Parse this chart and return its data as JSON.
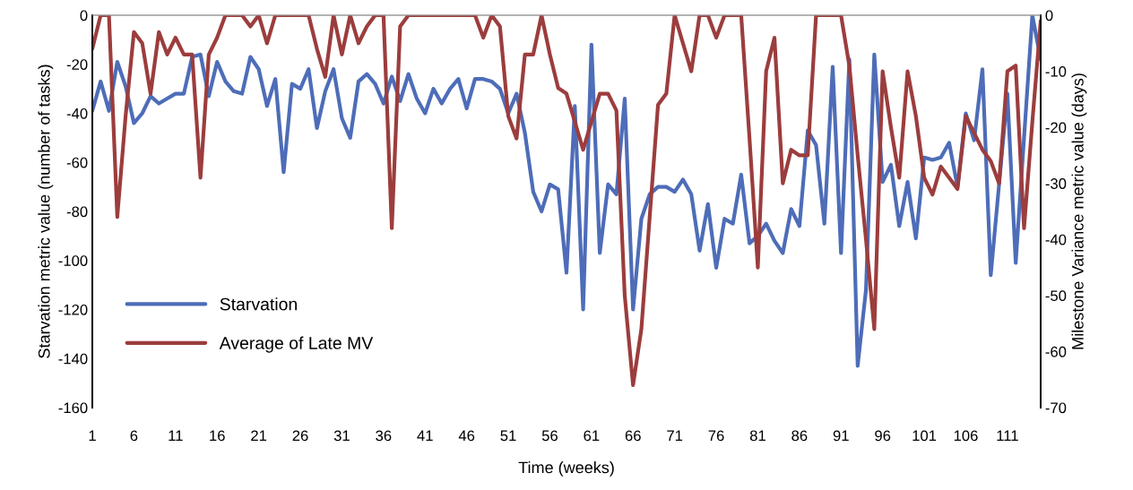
{
  "chart_data": {
    "type": "line",
    "xlabel": "Time (weeks)",
    "ylabel": "Starvation metric value (number of tasks)",
    "y2label": "Milestone Variance metric value (days)",
    "categories": [
      "1",
      null,
      null,
      null,
      null,
      "6",
      null,
      null,
      null,
      null,
      "11",
      null,
      null,
      null,
      null,
      "16",
      null,
      null,
      null,
      null,
      "21",
      null,
      null,
      null,
      null,
      "26",
      null,
      null,
      null,
      null,
      "31",
      null,
      null,
      null,
      null,
      "36",
      null,
      null,
      null,
      null,
      "41",
      null,
      null,
      null,
      null,
      "46",
      null,
      null,
      null,
      null,
      "51",
      null,
      null,
      null,
      null,
      "56",
      null,
      null,
      null,
      null,
      "61",
      null,
      null,
      null,
      null,
      "66",
      null,
      null,
      null,
      null,
      "71",
      null,
      null,
      null,
      null,
      "76",
      null,
      null,
      null,
      null,
      "81",
      null,
      null,
      null,
      null,
      "86",
      null,
      null,
      null,
      null,
      "91",
      null,
      null,
      null,
      null,
      "96",
      null,
      null,
      null,
      null,
      "101",
      null,
      null,
      null,
      null,
      "106",
      null,
      null,
      null,
      null,
      "111",
      null,
      null,
      null,
      null
    ],
    "series": [
      {
        "name": "Starvation",
        "color": "#4e6db8",
        "values": [
          -39,
          -27,
          -39,
          -19,
          -29,
          -44,
          -40,
          -33,
          -36,
          -34,
          -32,
          -32,
          -17,
          -16,
          -33,
          -19,
          -27,
          -31,
          -32,
          -17,
          -22,
          -37,
          -26,
          -64,
          -28,
          -30,
          -22,
          -46,
          -31,
          -22,
          -42,
          -50,
          -27,
          -24,
          -28,
          -36,
          -25,
          -35,
          -24,
          -34,
          -40,
          -30,
          -36,
          -30,
          -26,
          -38,
          -26,
          -26,
          -27,
          -30,
          -40,
          -32,
          -48,
          -72,
          -80,
          -69,
          -71,
          -105,
          -37,
          -120,
          -12,
          -97,
          -69,
          -73,
          -34,
          -120,
          -83,
          -73,
          -70,
          -70,
          -72,
          -67,
          -73,
          -96,
          -77,
          -103,
          -83,
          -85,
          -65,
          -93,
          -90,
          -85,
          -92,
          -97,
          -79,
          -86,
          -47,
          -53,
          -85,
          -21,
          -97,
          -18,
          -143,
          -112,
          -16,
          -68,
          -61,
          -86,
          -68,
          -91,
          -58,
          -59,
          -58,
          -52,
          -70,
          -40,
          -51,
          -22,
          -106,
          -69,
          -32,
          -101,
          -50,
          0,
          -18
        ]
      },
      {
        "name": "Average of Late MV",
        "color": "#9c3d3d",
        "axis": "y2",
        "values": [
          -6,
          0,
          0,
          -36,
          -18,
          -3,
          -5,
          -14,
          -3,
          -7,
          -4,
          -7,
          -7,
          -29,
          -7,
          -4,
          0,
          0,
          0,
          -2,
          0,
          -5,
          0,
          0,
          0,
          0,
          0,
          -6,
          -11,
          0,
          -7,
          0,
          -5,
          -2,
          0,
          0,
          -38,
          -2,
          0,
          0,
          0,
          0,
          0,
          0,
          0,
          0,
          0,
          -4,
          0,
          -2,
          -18,
          -22,
          -7,
          -7,
          0,
          -7,
          -13,
          -14,
          -19,
          -24,
          -19,
          -14,
          -14,
          -17,
          -50,
          -66,
          -56,
          -36,
          -16,
          -14,
          0,
          -5,
          -10,
          0,
          0,
          -4,
          0,
          0,
          0,
          -22,
          -45,
          -10,
          -4,
          -30,
          -24,
          -25,
          -25,
          0,
          0,
          0,
          0,
          -9,
          -25,
          -40,
          -56,
          -10,
          -20,
          -29,
          -10,
          -18,
          -29,
          -32,
          -27,
          -29,
          -31,
          -18,
          -21,
          -24,
          -26,
          -30,
          -10,
          -9,
          -38,
          -19,
          -1
        ]
      }
    ],
    "ylim": [
      -160,
      0
    ],
    "yticks": [
      0,
      -20,
      -40,
      -60,
      -80,
      -100,
      -120,
      -140,
      -160
    ],
    "y2lim": [
      -70,
      0
    ],
    "y2ticks": [
      0,
      -10,
      -20,
      -30,
      -40,
      -50,
      -60,
      -70
    ],
    "legend": "bottom left",
    "grid": false,
    "marker": "none",
    "line_style": "solid"
  }
}
